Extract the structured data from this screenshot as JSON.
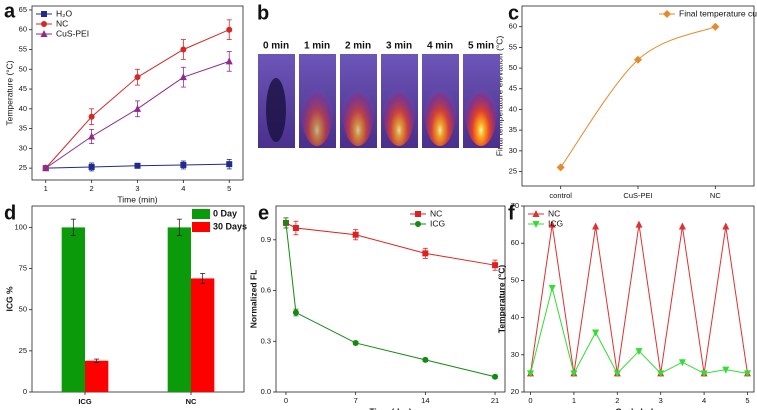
{
  "chart_data": [
    {
      "label": "a",
      "type": "line",
      "xlabel": "Time (min)",
      "ylabel": "Temperature (°C)",
      "xlim": [
        0.7,
        5.3
      ],
      "xticks": [
        1,
        2,
        3,
        4,
        5
      ],
      "ylim": [
        22,
        66
      ],
      "yticks": [
        25,
        30,
        35,
        40,
        45,
        50,
        55,
        60,
        65
      ],
      "x": [
        1,
        2,
        3,
        4,
        5
      ],
      "legend": "upper left",
      "series": [
        {
          "name": "H₂O",
          "color": "#1f2b8f",
          "marker": "square",
          "values": [
            25,
            25.3,
            25.6,
            25.8,
            26
          ],
          "errors": [
            0.3,
            1,
            0.5,
            1,
            1.2
          ]
        },
        {
          "name": "NC",
          "color": "#d62728",
          "marker": "circle",
          "values": [
            25,
            38,
            48,
            55,
            60
          ],
          "errors": [
            0.5,
            2,
            2,
            2.5,
            2.5
          ]
        },
        {
          "name": "CuS-PEI",
          "color": "#8e2a8e",
          "marker": "triangle",
          "values": [
            25,
            33,
            40,
            48,
            52
          ],
          "errors": [
            0.5,
            1.8,
            2,
            2.5,
            2.5
          ]
        }
      ]
    },
    {
      "label": "c",
      "type": "line",
      "smooth": true,
      "ylabel": "Final temperature elevation (°C)",
      "categories": [
        "control",
        "CuS-PEI",
        "NC"
      ],
      "ylim": [
        21.5,
        65
      ],
      "yticks": [
        25,
        30,
        35,
        40,
        45,
        50,
        55,
        60
      ],
      "legend": "upper right",
      "series": [
        {
          "name": "Final temperature curve",
          "color": "#e8892a",
          "marker": "diamond",
          "values": [
            26,
            52,
            60
          ]
        }
      ]
    },
    {
      "label": "d",
      "type": "bar",
      "ylabel": "ICG %",
      "categories": [
        "ICG",
        "NC"
      ],
      "ylim": [
        0,
        113
      ],
      "yticks": [
        0,
        25,
        50,
        75,
        100
      ],
      "legend": "upper right",
      "series": [
        {
          "name": "0 Day",
          "color": "#0a9a0a",
          "values": [
            100,
            100
          ],
          "errors": [
            5,
            5
          ]
        },
        {
          "name": "30 Days",
          "color": "#ff0000",
          "values": [
            19,
            69
          ],
          "errors": [
            1,
            3
          ]
        }
      ]
    },
    {
      "label": "e",
      "type": "line",
      "xlabel": "Time (day)",
      "ylabel": "Normalized FL",
      "xlim": [
        -1,
        22
      ],
      "xticks": [
        0,
        7,
        14,
        21
      ],
      "ylim": [
        0,
        1.1
      ],
      "yticks": [
        {
          "value": 0,
          "label": "0.0"
        },
        0.3,
        0.6,
        0.9
      ],
      "x": [
        0,
        1,
        7,
        14,
        21
      ],
      "legend": "upper right",
      "series": [
        {
          "name": "NC",
          "color": "#e02020",
          "marker": "square",
          "values": [
            1.0,
            0.97,
            0.93,
            0.82,
            0.75
          ],
          "errors": [
            0.03,
            0.04,
            0.03,
            0.03,
            0.03
          ]
        },
        {
          "name": "ICG",
          "color": "#138a13",
          "marker": "circle",
          "values": [
            1.0,
            0.47,
            0.29,
            0.19,
            0.09
          ],
          "errors": [
            0.03,
            0.02,
            0.01,
            0.01,
            0.01
          ]
        }
      ]
    },
    {
      "label": "f",
      "type": "line",
      "xlabel": "Cycle Index",
      "ylabel": "Temperature (°C)",
      "xlim": [
        -0.15,
        5.15
      ],
      "xticks": [
        0,
        1,
        2,
        3,
        4,
        5
      ],
      "ylim": [
        20,
        70
      ],
      "yticks": [
        20,
        30,
        40,
        50,
        60,
        70
      ],
      "x": [
        0,
        0.5,
        1,
        1.5,
        2,
        2.5,
        3,
        3.5,
        4,
        4.5,
        5
      ],
      "legend": "upper left",
      "series": [
        {
          "name": "NC",
          "color": "#e03030",
          "marker": "triangle",
          "values": [
            25,
            65,
            25,
            64.5,
            25,
            65,
            25,
            64.5,
            25,
            64.5,
            25
          ]
        },
        {
          "name": "ICG",
          "color": "#33dd33",
          "marker": "triangle-down",
          "values": [
            25,
            48,
            25,
            36,
            25,
            31,
            25,
            28,
            25,
            26,
            25
          ]
        }
      ]
    }
  ],
  "image_panel": {
    "label": "b",
    "frames": [
      "0 min",
      "1 min",
      "2 min",
      "3 min",
      "4 min",
      "5 min"
    ]
  }
}
